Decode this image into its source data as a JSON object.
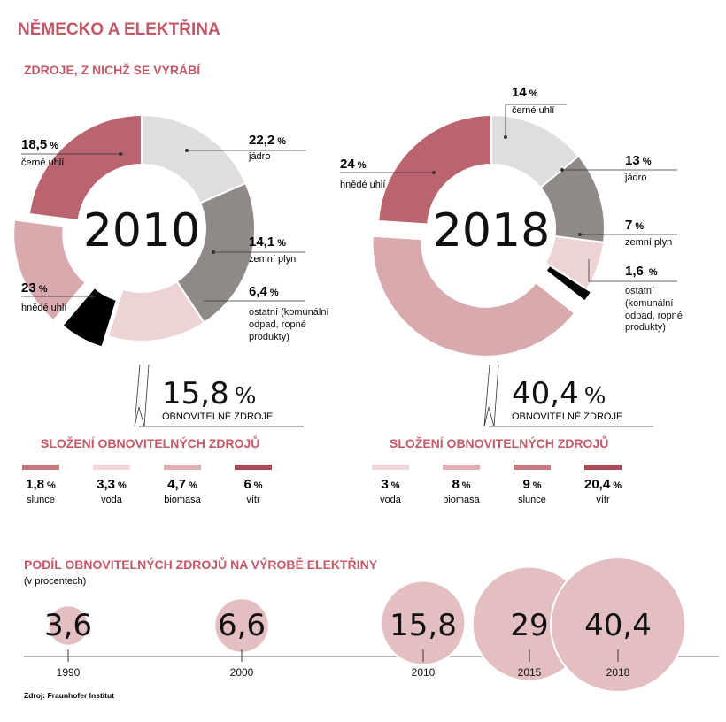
{
  "title": "NĚMECKO A ELEKTŘINA",
  "subtitle_sources": "ZDROJE, Z NICHŽ SE VYRÁBÍ",
  "colors": {
    "accent": "#c35867",
    "cerne_uhli": "#dededd",
    "jadro": "#8f8a88",
    "zemni_plyn": "#eed3d4",
    "ostatni": "#000000",
    "hnede_uhli": "#b9646e",
    "obnovitelne": "#d8a9ad",
    "voda": "#efd9da",
    "biomasa": "#dfb0b3",
    "slunce": "#c57a82",
    "vitr": "#a84a58"
  },
  "chart_data": [
    {
      "type": "pie",
      "title": "2010",
      "slices": [
        {
          "label": "černé uhlí",
          "value": 18.5,
          "display": "18,5",
          "color": "#dededd"
        },
        {
          "label": "jádro",
          "value": 22.2,
          "display": "22,2",
          "color": "#8f8a88"
        },
        {
          "label": "zemní plyn",
          "value": 14.1,
          "display": "14,1",
          "color": "#eed3d4"
        },
        {
          "label": "ostatní (komunální odpad, ropné produkty)",
          "value": 6.4,
          "display": "6,4",
          "color": "#000000"
        },
        {
          "label": "OBNOVITELNÉ ZDROJE",
          "value": 15.8,
          "display": "15,8",
          "color": "#d8a9ad"
        },
        {
          "label": "hnědé uhlí",
          "value": 23,
          "display": "23",
          "color": "#b9646e"
        }
      ],
      "renewables_total": "15,8",
      "renewables_label": "OBNOVITELNÉ ZDROJE",
      "renewables_heading": "SLOŽENÍ OBNOVITELNÝCH ZDROJŮ",
      "renewables": [
        {
          "label": "slunce",
          "value": 1.8,
          "display": "1,8"
        },
        {
          "label": "voda",
          "value": 3.3,
          "display": "3,3"
        },
        {
          "label": "biomasa",
          "value": 4.7,
          "display": "4,7"
        },
        {
          "label": "vítr",
          "value": 6,
          "display": "6"
        }
      ]
    },
    {
      "type": "pie",
      "title": "2018",
      "slices": [
        {
          "label": "černé uhlí",
          "value": 14,
          "display": "14",
          "color": "#dededd"
        },
        {
          "label": "jádro",
          "value": 13,
          "display": "13",
          "color": "#8f8a88"
        },
        {
          "label": "zemní plyn",
          "value": 7,
          "display": "7",
          "color": "#eed3d4"
        },
        {
          "label": "ostatní (komunální odpad, ropné produkty)",
          "value": 1.6,
          "display": "1,6",
          "color": "#000000"
        },
        {
          "label": "OBNOVITELNÉ ZDROJE",
          "value": 40.4,
          "display": "40,4",
          "color": "#d8a9ad"
        },
        {
          "label": "hnědé uhlí",
          "value": 24,
          "display": "24",
          "color": "#b9646e"
        }
      ],
      "renewables_total": "40,4",
      "renewables_label": "OBNOVITELNÉ ZDROJE",
      "renewables_heading": "SLOŽENÍ OBNOVITELNÝCH ZDROJŮ",
      "renewables": [
        {
          "label": "voda",
          "value": 3,
          "display": "3"
        },
        {
          "label": "biomasa",
          "value": 8,
          "display": "8"
        },
        {
          "label": "slunce",
          "value": 9,
          "display": "9"
        },
        {
          "label": "vítr",
          "value": 20.4,
          "display": "20,4"
        }
      ]
    },
    {
      "type": "scatter",
      "title": "PODÍL OBNOVITELNÝCH ZDROJŮ NA VÝROBĚ ELEKTŘINY",
      "subtitle": "(v procentech)",
      "points": [
        {
          "year": "1990",
          "value": 3.6,
          "display": "3,6"
        },
        {
          "year": "2000",
          "value": 6.6,
          "display": "6,6"
        },
        {
          "year": "2010",
          "value": 15.8,
          "display": "15,8"
        },
        {
          "year": "2015",
          "value": 29,
          "display": "29"
        },
        {
          "year": "2018",
          "value": 40.4,
          "display": "40,4"
        }
      ]
    }
  ],
  "labels_2010": {
    "cerne_uhli": "černé uhlí",
    "jadro": "jádro",
    "zemni_plyn": "zemní plyn",
    "ostatni": [
      "ostatní (komunální",
      "odpad, ropné",
      "produkty)"
    ],
    "hnede_uhli": "hnědé uhlí"
  },
  "labels_2018": {
    "cerne_uhli": "černé uhlí",
    "jadro": "jádro",
    "zemni_plyn": "zemní plyn",
    "ostatni": [
      "ostatní",
      "(komunální",
      "odpad, ropné",
      "produkty)"
    ],
    "hnede_uhli": "hnědé uhlí"
  },
  "percent_sign": "%",
  "source": "Zdroj: Fraunhofer Institut"
}
